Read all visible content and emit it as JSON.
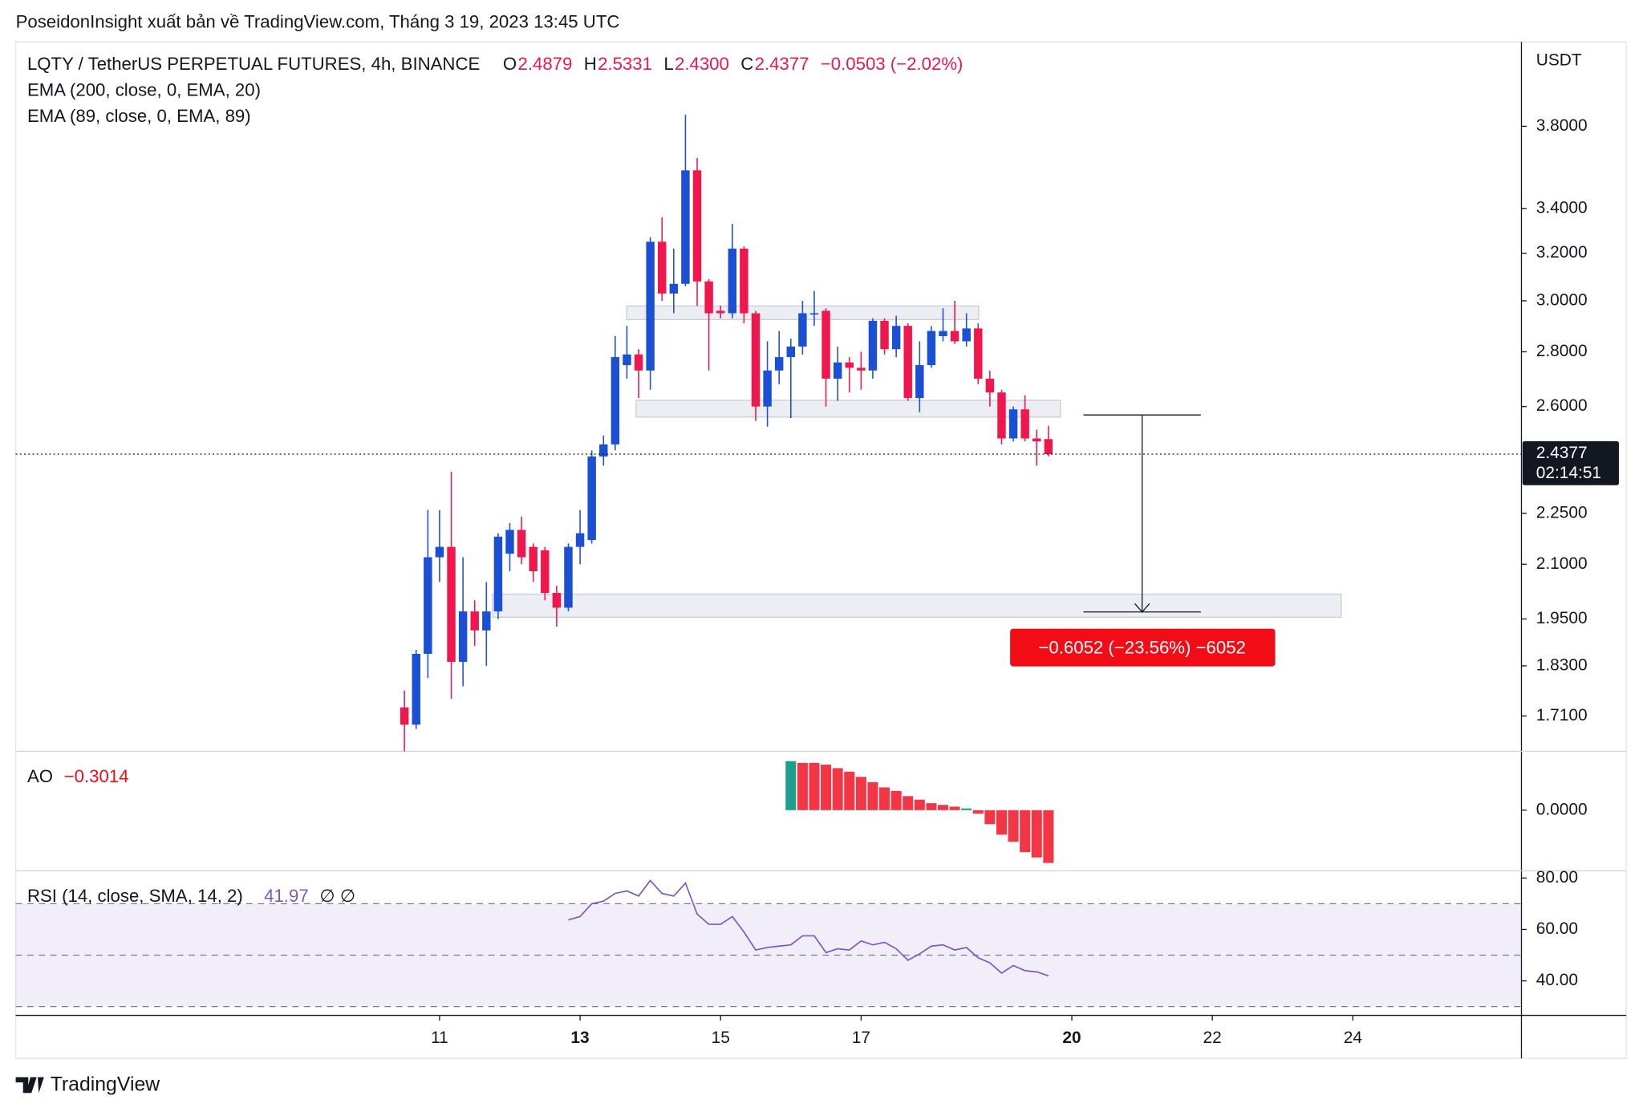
{
  "header": {
    "title": "PoseidonInsight xuất bản về TradingView.com, Tháng 3 19, 2023 13:45 UTC"
  },
  "chart_data": {
    "type": "candlestick",
    "title": "LQTY / TetherUS PERPETUAL FUTURES, 4h, BINANCE",
    "ohlc_legend": [
      {
        "key": "O",
        "text": "2.4879"
      },
      {
        "key": "H",
        "text": "2.5331"
      },
      {
        "key": "L",
        "text": "2.4300"
      },
      {
        "key": "C",
        "text": "2.4377"
      }
    ],
    "change": "−0.0503 (−2.02%)",
    "indicators": [
      "EMA (200, close, 0, EMA, 20)",
      "EMA (89, close, 0, EMA, 89)"
    ],
    "axis_unit": "USDT",
    "open": [
      1.73,
      1.69,
      1.86,
      2.12,
      2.15,
      1.84,
      1.97,
      1.92,
      1.97,
      2.13,
      2.2,
      2.15,
      2.14,
      2.02,
      1.98,
      2.15,
      2.17,
      2.43,
      2.47,
      2.75,
      2.79,
      2.73,
      3.25,
      3.03,
      3.07,
      3.58,
      3.08,
      2.96,
      2.95,
      3.22,
      2.95,
      2.6,
      2.73,
      2.78,
      2.82,
      2.95,
      2.96,
      2.7,
      2.76,
      2.74,
      2.73,
      2.92,
      2.81,
      2.9,
      2.63,
      2.75,
      2.86,
      2.88,
      2.84,
      2.89,
      2.7,
      2.65,
      2.49,
      2.59,
      2.49,
      2.4879
    ],
    "high": [
      1.77,
      1.87,
      2.26,
      2.26,
      2.38,
      2.12,
      2.0,
      2.05,
      2.19,
      2.22,
      2.24,
      2.16,
      2.15,
      2.04,
      2.16,
      2.26,
      2.45,
      2.5,
      2.86,
      2.9,
      2.81,
      3.27,
      3.36,
      3.22,
      3.86,
      3.64,
      3.09,
      2.98,
      3.33,
      3.23,
      2.96,
      2.84,
      2.88,
      2.85,
      3.0,
      3.04,
      2.97,
      2.82,
      2.78,
      2.8,
      2.93,
      2.93,
      2.94,
      2.91,
      2.84,
      2.9,
      2.97,
      3.0,
      2.95,
      2.91,
      2.73,
      2.66,
      2.6,
      2.64,
      2.52,
      2.5331
    ],
    "low": [
      1.63,
      1.68,
      1.8,
      2.05,
      1.75,
      1.78,
      1.88,
      1.83,
      1.95,
      2.08,
      2.1,
      2.05,
      2.0,
      1.93,
      1.97,
      2.1,
      2.16,
      2.4,
      2.45,
      2.7,
      2.63,
      2.66,
      3.0,
      2.95,
      3.06,
      2.98,
      2.73,
      2.93,
      2.93,
      2.91,
      2.55,
      2.53,
      2.68,
      2.56,
      2.79,
      2.9,
      2.6,
      2.62,
      2.65,
      2.66,
      2.7,
      2.79,
      2.78,
      2.62,
      2.58,
      2.74,
      2.84,
      2.83,
      2.82,
      2.68,
      2.6,
      2.47,
      2.48,
      2.48,
      2.4,
      2.43
    ],
    "close": [
      1.69,
      1.86,
      2.12,
      2.15,
      1.84,
      1.97,
      1.92,
      1.97,
      2.18,
      2.2,
      2.12,
      2.08,
      2.02,
      1.98,
      2.15,
      2.19,
      2.43,
      2.47,
      2.78,
      2.79,
      2.73,
      3.25,
      3.03,
      3.07,
      3.58,
      3.08,
      2.95,
      2.95,
      3.22,
      2.95,
      2.6,
      2.73,
      2.78,
      2.82,
      2.95,
      2.95,
      2.7,
      2.76,
      2.74,
      2.73,
      2.92,
      2.81,
      2.9,
      2.63,
      2.75,
      2.88,
      2.88,
      2.84,
      2.89,
      2.7,
      2.65,
      2.49,
      2.59,
      2.49,
      2.48,
      2.4377
    ],
    "up_color": "#1b4fd4",
    "down_color": "#f0174f",
    "log_scale": true,
    "ylim": [
      1.63,
      4.26
    ],
    "yticks": [
      {
        "value": 3.8,
        "label": "3.8000"
      },
      {
        "value": 3.4,
        "label": "3.4000"
      },
      {
        "value": 3.2,
        "label": "3.2000"
      },
      {
        "value": 3.0,
        "label": "3.0000"
      },
      {
        "value": 2.8,
        "label": "2.8000"
      },
      {
        "value": 2.6,
        "label": "2.6000"
      },
      {
        "value": 2.25,
        "label": "2.2500"
      },
      {
        "value": 2.1,
        "label": "2.1000"
      },
      {
        "value": 1.95,
        "label": "1.9500"
      },
      {
        "value": 1.83,
        "label": "1.8300"
      },
      {
        "value": 1.71,
        "label": "1.7100"
      }
    ],
    "xlim": [
      -33.2,
      95.4
    ],
    "xticks": [
      {
        "value": 3,
        "label": "11"
      },
      {
        "value": 15,
        "label": "13",
        "bold": true
      },
      {
        "value": 27,
        "label": "15"
      },
      {
        "value": 39,
        "label": "17"
      },
      {
        "value": 57,
        "label": "20",
        "bold": true
      },
      {
        "value": 69,
        "label": "22"
      },
      {
        "value": 81,
        "label": "24"
      }
    ],
    "countdown": "02:14:51",
    "measure_label": "−0.6052 (−23.56%) −6052",
    "ao": {
      "name": "AO",
      "legend_value": "−0.3014",
      "values": [
        null,
        null,
        null,
        null,
        null,
        null,
        null,
        null,
        null,
        null,
        null,
        null,
        null,
        null,
        null,
        null,
        null,
        null,
        null,
        null,
        null,
        null,
        null,
        null,
        null,
        null,
        null,
        null,
        null,
        null,
        null,
        null,
        null,
        0.28,
        0.27,
        0.27,
        0.26,
        0.24,
        0.22,
        0.19,
        0.16,
        0.13,
        0.11,
        0.08,
        0.06,
        0.04,
        0.03,
        0.02,
        0.01,
        -0.02,
        -0.08,
        -0.14,
        -0.18,
        -0.24,
        -0.27,
        -0.3014
      ],
      "colors": [
        null,
        null,
        null,
        null,
        null,
        null,
        null,
        null,
        null,
        null,
        null,
        null,
        null,
        null,
        null,
        null,
        null,
        null,
        null,
        null,
        null,
        null,
        null,
        null,
        null,
        null,
        null,
        null,
        null,
        null,
        null,
        null,
        null,
        "#1e9e8c",
        "#f23645",
        "#f23645",
        "#f23645",
        "#f23645",
        "#f23645",
        "#f23645",
        "#f23645",
        "#f23645",
        "#f23645",
        "#f23645",
        "#f23645",
        "#f23645",
        "#f23645",
        "#f23645",
        "#1e9e8c",
        "#f23645",
        "#f23645",
        "#f23645",
        "#f23645",
        "#f23645",
        "#f23645",
        "#f23645"
      ],
      "ylim": [
        -0.34,
        0.33
      ],
      "yticks": [
        {
          "value": 0,
          "label": "0.0000"
        }
      ]
    },
    "rsi": {
      "name": "RSI (14, close, SMA, 14, 2)",
      "extra": "∅ ∅",
      "color": "#7e57c2",
      "values": [
        null,
        null,
        null,
        null,
        null,
        null,
        null,
        null,
        null,
        null,
        null,
        null,
        null,
        null,
        63.7,
        65,
        70,
        71,
        74,
        75,
        73,
        79,
        74,
        73,
        78,
        66,
        62,
        62,
        65,
        59,
        52,
        53,
        53.5,
        54,
        57.5,
        57.5,
        51,
        52.5,
        52,
        55.5,
        54,
        55,
        52.5,
        48,
        50.5,
        53.5,
        54,
        52,
        53,
        49,
        47,
        43,
        46,
        44,
        43.5,
        41.97
      ],
      "ylim": [
        27,
        82.4
      ],
      "yticks": [
        {
          "value": 80,
          "label": "80.00"
        },
        {
          "value": 60,
          "label": "60.00"
        },
        {
          "value": 40,
          "label": "40.00"
        }
      ],
      "band": [
        30,
        70
      ],
      "levels": [
        70,
        50,
        30
      ]
    }
  },
  "footer": {
    "brand": "TradingView"
  }
}
